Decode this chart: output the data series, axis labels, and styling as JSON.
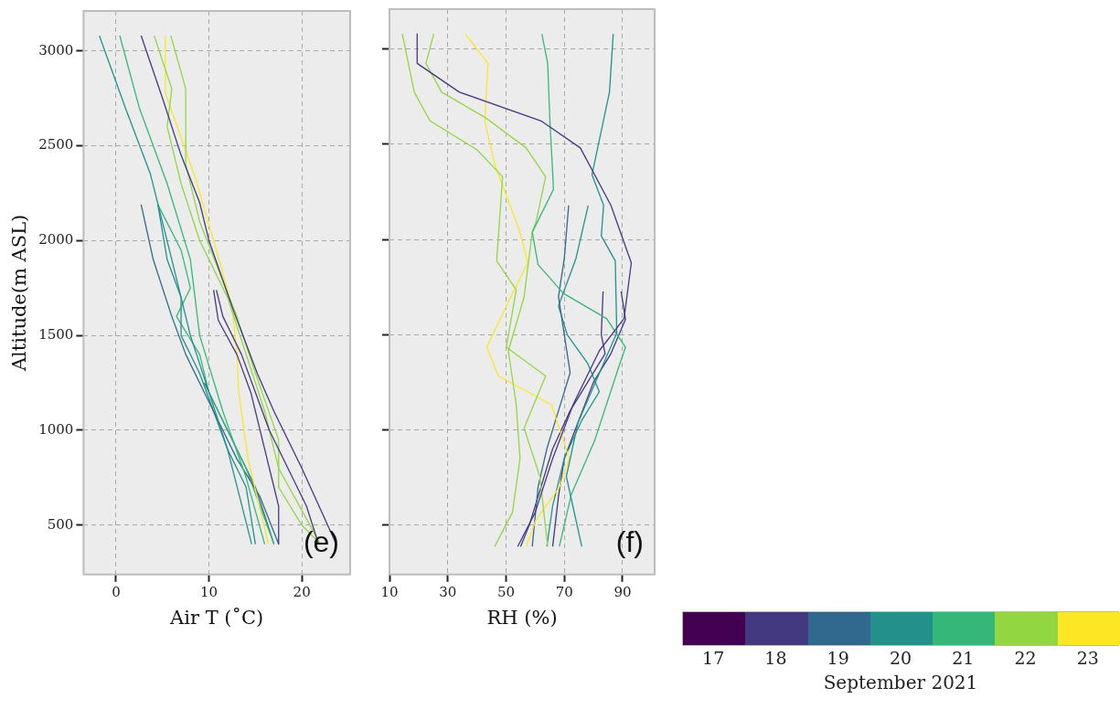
{
  "chart_data": [
    {
      "type": "line",
      "xlabel": "Air T (˚C)",
      "ylabel": "Altitude(m ASL)",
      "annotations": [
        "(e)"
      ],
      "grid": true,
      "xlim": [
        -3.5,
        25.2
      ],
      "xticks": [
        0,
        10,
        20
      ],
      "ylim": [
        240,
        3210
      ],
      "yticks": [
        500,
        1000,
        1500,
        2000,
        2500,
        3000
      ],
      "series": [
        {
          "color": "#21918c",
          "x": [
            -1.8,
            1,
            3.7,
            6,
            8,
            10,
            12,
            14.6
          ],
          "values": [
            3080,
            2700,
            2350,
            1900,
            1500,
            1200,
            900,
            400
          ]
        },
        {
          "color": "#35b779",
          "x": [
            0.4,
            2.5,
            5.5,
            8,
            9,
            11.5,
            14,
            16
          ],
          "values": [
            3080,
            2700,
            2300,
            1900,
            1500,
            1100,
            750,
            400
          ]
        },
        {
          "color": "#443983",
          "x": [
            2.7,
            5,
            7,
            9,
            10,
            12.5,
            15.2,
            17,
            20,
            23.7
          ],
          "values": [
            3080,
            2750,
            2450,
            2200,
            2000,
            1650,
            1300,
            1100,
            800,
            400
          ]
        },
        {
          "color": "#443983",
          "x": [
            10.5,
            11,
            13,
            14.5,
            15.5,
            16.5,
            17.5,
            17.5
          ],
          "values": [
            1740,
            1580,
            1400,
            1200,
            1000,
            800,
            600,
            400
          ]
        },
        {
          "color": "#443983",
          "x": [
            10.8,
            11.5,
            13.5,
            15,
            16.5,
            18.5,
            20.5,
            21.8
          ],
          "values": [
            1740,
            1600,
            1400,
            1200,
            1000,
            800,
            600,
            400
          ]
        },
        {
          "color": "#90d743",
          "x": [
            4.1,
            6,
            5.5,
            7,
            9,
            12,
            14,
            16,
            17.5,
            22
          ],
          "values": [
            3080,
            2800,
            2600,
            2300,
            2000,
            1700,
            1400,
            1100,
            800,
            400
          ]
        },
        {
          "color": "#90d743",
          "x": [
            5.9,
            7.5,
            7.5,
            9,
            11,
            13,
            15,
            17.5,
            17.5,
            20,
            22
          ],
          "values": [
            3080,
            2800,
            2400,
            2100,
            1850,
            1600,
            1300,
            950,
            700,
            500,
            400
          ]
        },
        {
          "color": "#fde725",
          "x": [
            5.3,
            5.3,
            8.6,
            10.5,
            12.5,
            13,
            13.2,
            14.2,
            16.4
          ],
          "values": [
            3080,
            2780,
            2320,
            2000,
            1650,
            1400,
            1200,
            850,
            400
          ]
        },
        {
          "color": "#31688e",
          "x": [
            2.7,
            4,
            6,
            7.5,
            9.5,
            11.5,
            13,
            15.5,
            17.5
          ],
          "values": [
            2190,
            1900,
            1600,
            1400,
            1200,
            1000,
            850,
            650,
            400
          ]
        },
        {
          "color": "#21918c",
          "x": [
            4.5,
            5.5,
            7,
            7,
            9,
            10.5,
            12,
            14,
            15
          ],
          "values": [
            2190,
            1900,
            1700,
            1500,
            1300,
            1100,
            900,
            700,
            400
          ]
        },
        {
          "color": "#35b779",
          "x": [
            4.5,
            7,
            8,
            6.5,
            9,
            10,
            12,
            14,
            15.5,
            17
          ],
          "values": [
            2190,
            1950,
            1750,
            1600,
            1400,
            1200,
            1000,
            800,
            600,
            400
          ]
        },
        {
          "color": "#31688e",
          "x": [
            9.5,
            11,
            13,
            15,
            17
          ],
          "values": [
            1250,
            1100,
            900,
            700,
            400
          ]
        }
      ]
    },
    {
      "type": "line",
      "xlabel": "RH (%)",
      "annotations": [
        "(f)"
      ],
      "grid": true,
      "tick_labels": "x",
      "xlim": [
        10,
        101
      ],
      "xticks": [
        10,
        30,
        50,
        70,
        90
      ],
      "ylim": [
        240,
        3210
      ],
      "yticks": [
        500,
        1000,
        1500,
        2000,
        2500,
        3000
      ],
      "clabel": "September 2021",
      "clim": [
        16.5,
        23.5
      ],
      "cticks": [
        17,
        18,
        19,
        20,
        21,
        22,
        23
      ],
      "series": [
        {
          "color": "#443983",
          "x": [
            19.5,
            19.5,
            34,
            62,
            75.5,
            86,
            93,
            90.5,
            82,
            73,
            66,
            60,
            54
          ],
          "values": [
            3080,
            2925,
            2774,
            2623,
            2481,
            2179,
            1877,
            1585,
            1415,
            1132,
            849,
            566,
            387
          ]
        },
        {
          "color": "#21918c",
          "x": [
            86.8,
            85.5,
            79.5,
            83.5,
            82.7,
            87.5,
            88,
            82.7,
            74.7,
            70.7,
            76
          ],
          "values": [
            3080,
            2774,
            2340,
            2179,
            2019,
            1887,
            1509,
            1321,
            1038,
            755,
            387
          ]
        },
        {
          "color": "#35b779",
          "x": [
            62.3,
            64.3,
            65,
            66.3,
            59,
            61,
            69.7,
            84.5,
            91,
            88.5,
            80.4,
            72.4,
            68.3
          ],
          "values": [
            3080,
            2925,
            2642,
            2264,
            2038,
            1868,
            1717,
            1585,
            1434,
            1321,
            943,
            660,
            387
          ]
        },
        {
          "color": "#90d743",
          "x": [
            14.4,
            18.5,
            23.9,
            40,
            48.8,
            46.8,
            53.5,
            50.1,
            63.6,
            56.2,
            61.6,
            64.3
          ],
          "values": [
            3080,
            2774,
            2623,
            2472,
            2330,
            1887,
            1736,
            1434,
            1283,
            1009,
            755,
            387
          ]
        },
        {
          "color": "#90d743",
          "x": [
            25.2,
            22.5,
            27.9,
            42.7,
            56.9,
            63.6,
            60.3,
            59,
            56.2,
            50.8,
            53.5,
            54.8,
            52.2,
            46.1
          ],
          "values": [
            3080,
            2925,
            2774,
            2642,
            2481,
            2330,
            2094,
            2038,
            1698,
            1415,
            1132,
            849,
            566,
            387
          ]
        },
        {
          "color": "#fde725",
          "x": [
            36,
            43.8,
            42.7,
            46.1,
            54.8,
            57.5,
            52.8,
            43.4,
            47.4,
            65.6,
            71.7,
            68.3,
            60.3,
            56.9
          ],
          "values": [
            3080,
            2925,
            2623,
            2396,
            2038,
            1877,
            1736,
            1434,
            1283,
            1132,
            849,
            698,
            528,
            387
          ]
        },
        {
          "color": "#31688e",
          "x": [
            71.5,
            70,
            68,
            70,
            72,
            68,
            64,
            61,
            59
          ],
          "values": [
            2179,
            1900,
            1700,
            1500,
            1300,
            1100,
            900,
            700,
            387
          ]
        },
        {
          "color": "#21918c",
          "x": [
            78.2,
            74,
            68,
            71,
            78,
            82,
            76,
            70,
            66,
            64
          ],
          "values": [
            2179,
            1900,
            1650,
            1500,
            1350,
            1200,
            1050,
            850,
            600,
            387
          ]
        },
        {
          "color": "#443983",
          "x": [
            83.3,
            82.7,
            84,
            78,
            72,
            66,
            62,
            58,
            55
          ],
          "values": [
            1727,
            1500,
            1400,
            1250,
            1100,
            900,
            700,
            500,
            387
          ]
        },
        {
          "color": "#443983",
          "x": [
            89.5,
            91,
            86,
            80,
            75,
            70,
            68,
            66
          ],
          "values": [
            1727,
            1580,
            1400,
            1250,
            1050,
            850,
            650,
            387
          ]
        }
      ]
    }
  ]
}
